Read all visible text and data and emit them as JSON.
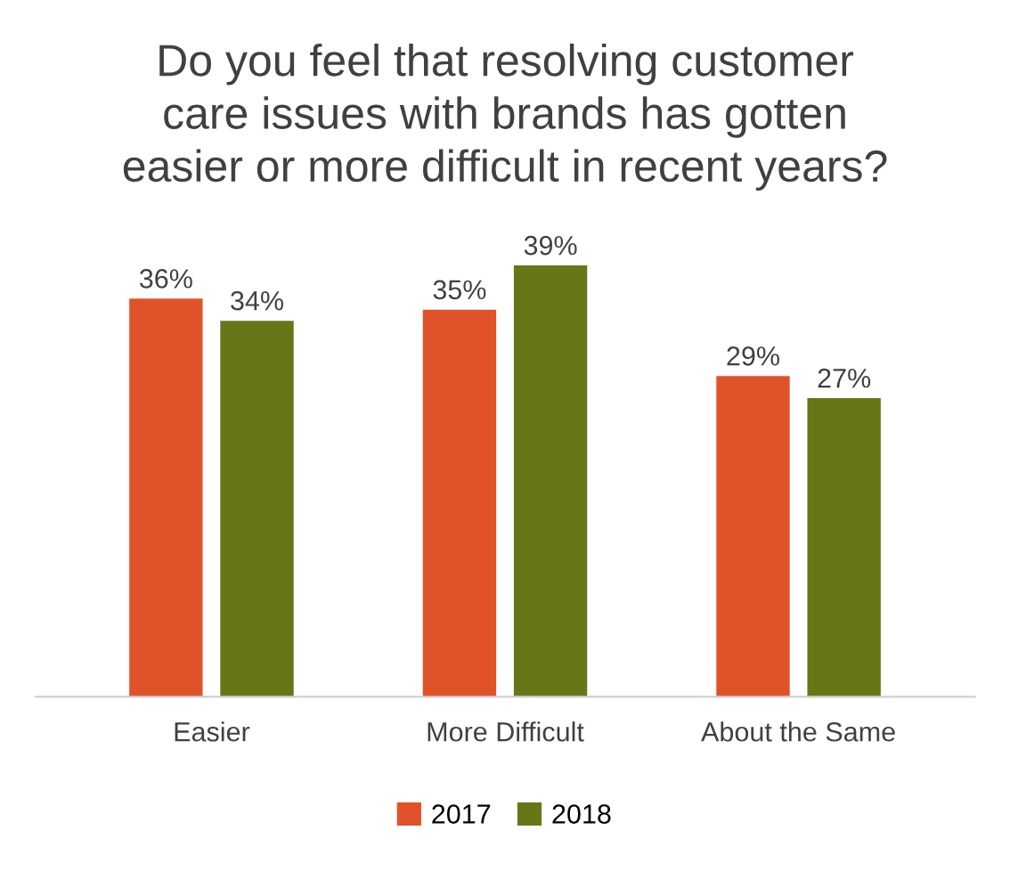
{
  "chart_data": {
    "type": "bar",
    "title": "Do you feel that resolving customer\ncare issues with brands has gotten\neasier or more difficult in recent years?",
    "categories": [
      "Easier",
      "More Difficult",
      "About the Same"
    ],
    "series": [
      {
        "name": "2017",
        "color": "#e0532a",
        "values": [
          36,
          35,
          29
        ],
        "value_labels": [
          "36%",
          "35%",
          "29%"
        ]
      },
      {
        "name": "2018",
        "color": "#677717",
        "values": [
          34,
          39,
          27
        ],
        "value_labels": [
          "34%",
          "39%",
          "27%"
        ]
      }
    ],
    "legend": "bottom",
    "grid": false
  }
}
